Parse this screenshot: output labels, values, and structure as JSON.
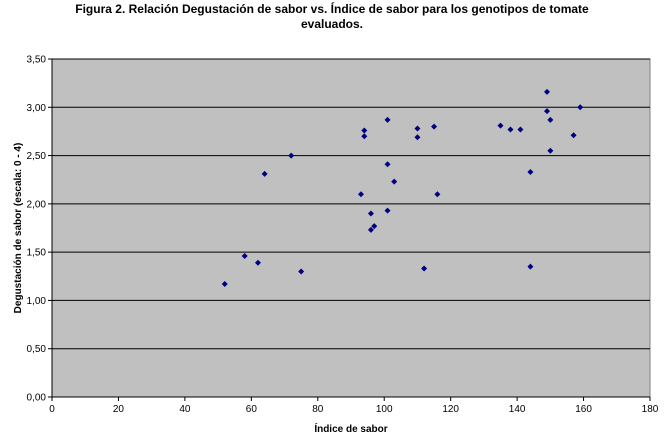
{
  "chart_data": {
    "type": "scatter",
    "title_line1": "Figura 2.  Relación Degustación de sabor vs. Índice de sabor para los genotipos de tomate",
    "title_line2": "evaluados.",
    "xlabel": "Índice de sabor",
    "ylabel": "Degustación de sabor (escala: 0 - 4)",
    "xlim": [
      0,
      180
    ],
    "ylim": [
      0,
      3.5
    ],
    "x_ticks": [
      0,
      20,
      40,
      60,
      80,
      100,
      120,
      140,
      160,
      180
    ],
    "x_tick_labels": [
      "0",
      "20",
      "40",
      "60",
      "80",
      "100",
      "120",
      "140",
      "160",
      "180"
    ],
    "y_ticks": [
      0,
      0.5,
      1.0,
      1.5,
      2.0,
      2.5,
      3.0,
      3.5
    ],
    "y_tick_labels": [
      "0,00",
      "0,50",
      "1,00",
      "1,50",
      "2,00",
      "2,50",
      "3,00",
      "3,50"
    ],
    "grid": "horizontal",
    "plot_background": "#c0c0c0",
    "marker_color": "#000080",
    "gridline_color": "#000000",
    "points": [
      {
        "x": 52,
        "y": 1.17
      },
      {
        "x": 58,
        "y": 1.46
      },
      {
        "x": 62,
        "y": 1.39
      },
      {
        "x": 64,
        "y": 2.31
      },
      {
        "x": 72,
        "y": 2.5
      },
      {
        "x": 75,
        "y": 1.3
      },
      {
        "x": 93,
        "y": 2.1
      },
      {
        "x": 94,
        "y": 2.76
      },
      {
        "x": 94,
        "y": 2.7
      },
      {
        "x": 96,
        "y": 1.9
      },
      {
        "x": 96,
        "y": 1.73
      },
      {
        "x": 97,
        "y": 1.77
      },
      {
        "x": 101,
        "y": 2.87
      },
      {
        "x": 101,
        "y": 2.41
      },
      {
        "x": 101,
        "y": 1.93
      },
      {
        "x": 103,
        "y": 2.23
      },
      {
        "x": 110,
        "y": 2.78
      },
      {
        "x": 110,
        "y": 2.69
      },
      {
        "x": 112,
        "y": 1.33
      },
      {
        "x": 115,
        "y": 2.8
      },
      {
        "x": 116,
        "y": 2.1
      },
      {
        "x": 135,
        "y": 2.81
      },
      {
        "x": 138,
        "y": 2.77
      },
      {
        "x": 141,
        "y": 2.77
      },
      {
        "x": 144,
        "y": 2.33
      },
      {
        "x": 144,
        "y": 1.35
      },
      {
        "x": 149,
        "y": 3.16
      },
      {
        "x": 149,
        "y": 2.96
      },
      {
        "x": 150,
        "y": 2.87
      },
      {
        "x": 150,
        "y": 2.55
      },
      {
        "x": 157,
        "y": 2.71
      },
      {
        "x": 159,
        "y": 3.0
      }
    ]
  }
}
